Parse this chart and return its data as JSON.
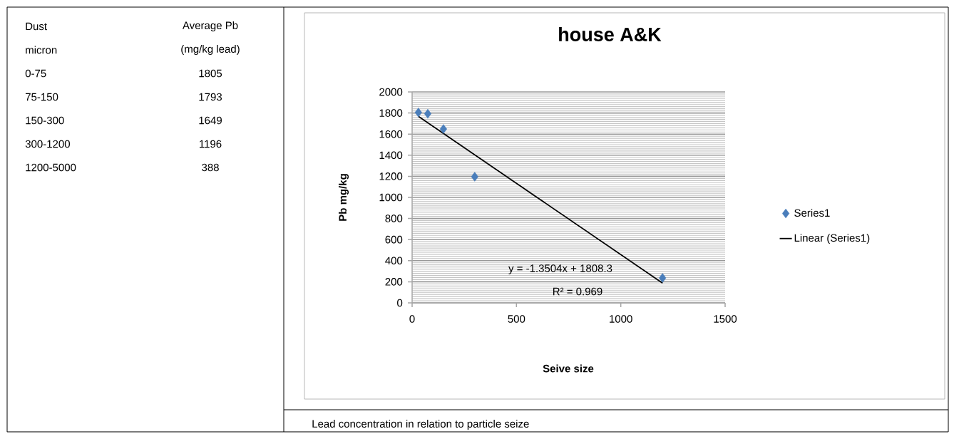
{
  "chart_data": [
    {
      "type": "other",
      "annotations": [
        "Dust",
        "Average Pb",
        "micron",
        "(mg/kg lead)",
        "0-75",
        "1805",
        "75-150",
        "1793",
        "150-300",
        "1649",
        "300-1200",
        "1196",
        "1200-5000",
        "388"
      ]
    },
    {
      "type": "scatter",
      "title": "house A&K",
      "xlabel": "Seive size",
      "ylabel": "Pb mg/kg",
      "xlim": [
        0,
        1500
      ],
      "xticks": [
        0,
        500,
        1000,
        1500
      ],
      "ylim": [
        0,
        2000
      ],
      "yticks": [
        0,
        200,
        400,
        600,
        800,
        1000,
        1200,
        1400,
        1600,
        1800,
        2000
      ],
      "grid": "y",
      "legend": "right",
      "marker": "diamond",
      "series": [
        {
          "name": "Series1",
          "color": "#4a7ebb",
          "x": [
            30,
            75,
            150,
            300,
            1200
          ],
          "values": [
            1805,
            1793,
            1649,
            1196,
            236
          ]
        },
        {
          "name": "Linear (Series1)",
          "type": "line",
          "color": "#000000",
          "line_style": "solid",
          "marker": "none",
          "x": [
            30,
            1200
          ],
          "values": [
            1768,
            188
          ]
        }
      ],
      "annotations": [
        "y = -1.3504x + 1808.3",
        "R² = 0.969",
        "Lead concentration in relation to particle seize"
      ]
    }
  ]
}
